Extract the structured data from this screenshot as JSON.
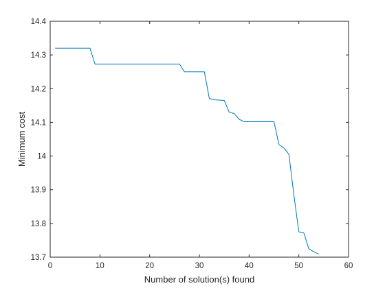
{
  "chart_data": {
    "type": "line",
    "title": "",
    "xlabel": "Number of solution(s) found",
    "ylabel": "Minimum cost",
    "xlim": [
      0,
      60
    ],
    "ylim": [
      13.7,
      14.4
    ],
    "xticks": [
      0,
      10,
      20,
      30,
      40,
      50,
      60
    ],
    "xtick_labels": [
      "0",
      "10",
      "20",
      "30",
      "40",
      "50",
      "60"
    ],
    "yticks": [
      13.7,
      13.8,
      13.9,
      14.0,
      14.1,
      14.2,
      14.3,
      14.4
    ],
    "ytick_labels": [
      "13.7",
      "13.8",
      "13.9",
      "14",
      "14.1",
      "14.2",
      "14.3",
      "14.4"
    ],
    "grid": false,
    "legend": "none",
    "series": [
      {
        "color": "#0072BD",
        "x": [
          1,
          8,
          9,
          26,
          27,
          31,
          32,
          33,
          35,
          36,
          37,
          38,
          39,
          40,
          41,
          42,
          43,
          44,
          45,
          46,
          47,
          48,
          49,
          50,
          51,
          52,
          53,
          54
        ],
        "y": [
          14.32,
          14.32,
          14.273,
          14.273,
          14.25,
          14.25,
          14.171,
          14.167,
          14.165,
          14.13,
          14.126,
          14.109,
          14.102,
          14.102,
          14.102,
          14.102,
          14.102,
          14.102,
          14.102,
          14.034,
          14.024,
          14.005,
          13.885,
          13.775,
          13.772,
          13.725,
          13.716,
          13.709
        ]
      }
    ]
  }
}
